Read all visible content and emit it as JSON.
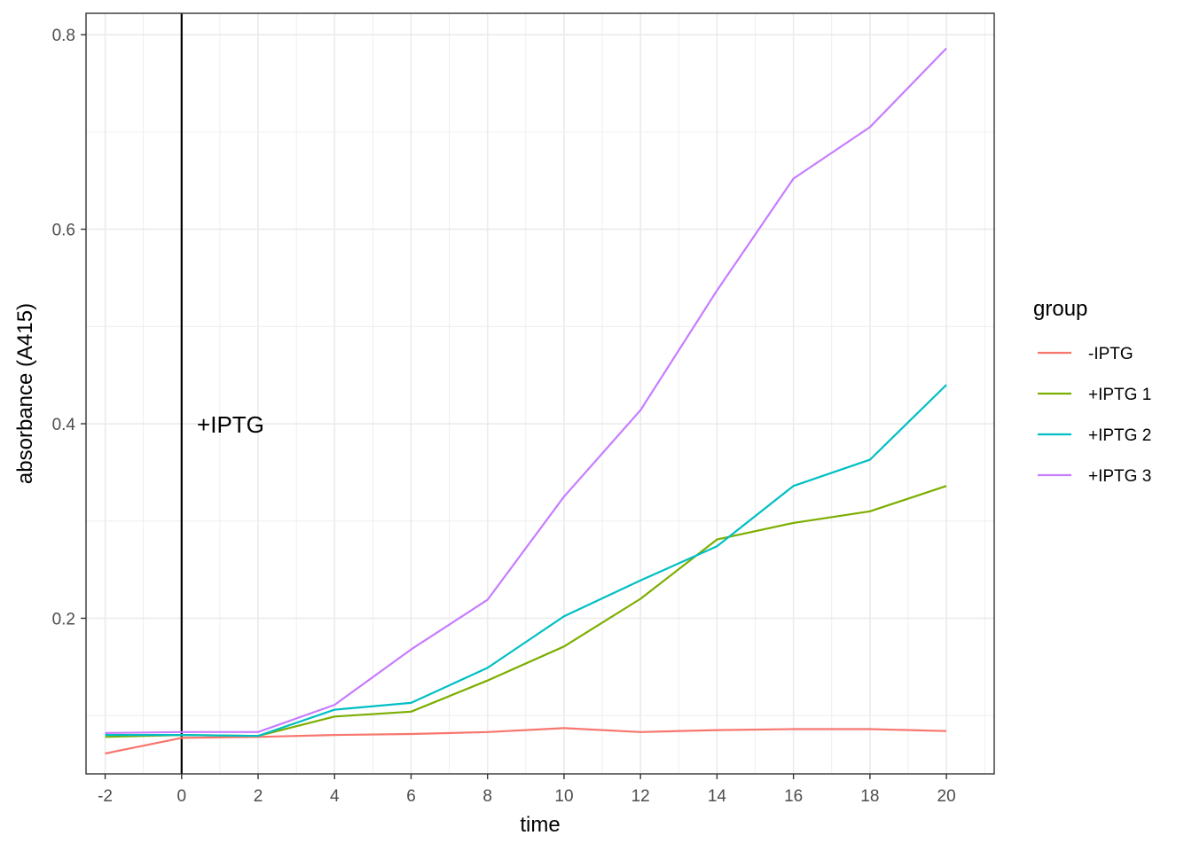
{
  "chart_data": {
    "type": "line",
    "xlabel": "time",
    "ylabel": "absorbance (A415)",
    "xlim": [
      -2.5,
      21.25
    ],
    "ylim": [
      0.04,
      0.822
    ],
    "x_ticks": [
      -2,
      0,
      2,
      4,
      6,
      8,
      10,
      12,
      14,
      16,
      18,
      20
    ],
    "x_tick_labels": [
      "-2",
      "0",
      "2",
      "4",
      "6",
      "8",
      "10",
      "12",
      "14",
      "16",
      "18",
      "20"
    ],
    "y_ticks": [
      0.2,
      0.4,
      0.6,
      0.8
    ],
    "y_tick_labels": [
      "0.2",
      "0.4",
      "0.6",
      "0.8"
    ],
    "grid": true,
    "vline": {
      "x": 0,
      "label": "+IPTG",
      "label_x": 0.4,
      "label_y": 0.4
    },
    "legend": {
      "title": "group",
      "position": "right"
    },
    "x": [
      -2,
      0,
      2,
      4,
      6,
      8,
      10,
      12,
      14,
      16,
      18,
      20
    ],
    "series": [
      {
        "name": "-IPTG",
        "color": "#F8766D",
        "values": [
          0.061,
          0.077,
          0.078,
          0.08,
          0.081,
          0.083,
          0.087,
          0.083,
          0.085,
          0.086,
          0.086,
          0.084
        ]
      },
      {
        "name": "+IPTG 1",
        "color": "#7CAE00",
        "values": [
          0.078,
          0.08,
          0.079,
          0.099,
          0.104,
          0.136,
          0.171,
          0.22,
          0.281,
          0.298,
          0.31,
          0.336
        ]
      },
      {
        "name": "+IPTG 2",
        "color": "#00BFC4",
        "values": [
          0.08,
          0.08,
          0.079,
          0.106,
          0.113,
          0.149,
          0.202,
          0.239,
          0.274,
          0.336,
          0.363,
          0.44
        ]
      },
      {
        "name": "+IPTG 3",
        "color": "#C77CFF",
        "values": [
          0.082,
          0.083,
          0.083,
          0.111,
          0.168,
          0.219,
          0.325,
          0.414,
          0.537,
          0.652,
          0.705,
          0.786
        ]
      }
    ]
  }
}
